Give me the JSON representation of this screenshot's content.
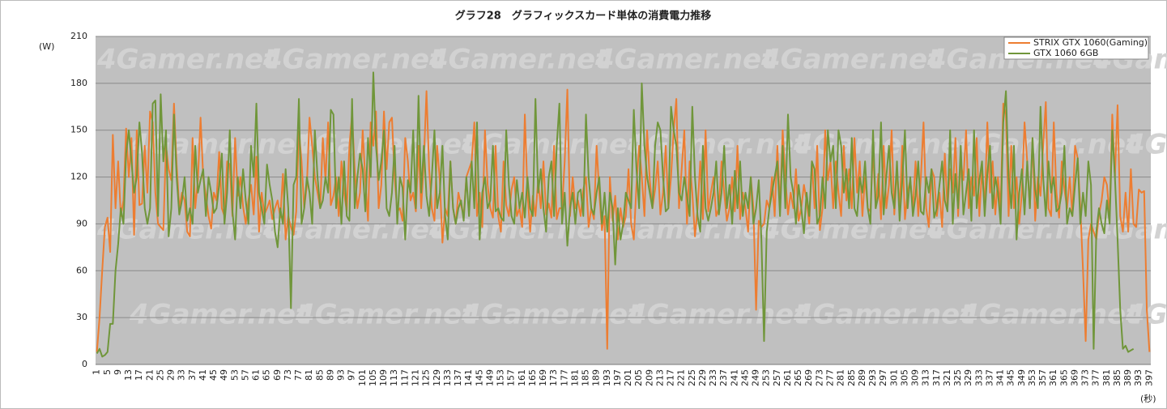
{
  "chart_data": {
    "type": "line",
    "title": "グラフ28　グラフィックスカード単体の消費電力推移",
    "y_axis_label": "(W)",
    "x_axis_label": "(秒)",
    "watermark": "4Gamer.net",
    "ylim": [
      0,
      210
    ],
    "yticks": [
      0,
      30,
      60,
      90,
      120,
      150,
      180,
      210
    ],
    "grid": true,
    "legend": "top-right",
    "categories": [
      "1",
      null,
      null,
      null,
      "5",
      null,
      null,
      null,
      "9",
      null,
      null,
      null,
      "13",
      null,
      null,
      null,
      "17",
      null,
      null,
      null,
      "21",
      null,
      null,
      null,
      "25",
      null,
      null,
      null,
      "29",
      null,
      null,
      null,
      "33",
      null,
      null,
      null,
      "37",
      null,
      null,
      null,
      "41",
      null,
      null,
      null,
      "45",
      null,
      null,
      null,
      "49",
      null,
      null,
      null,
      "53",
      null,
      null,
      null,
      "57",
      null,
      null,
      null,
      "61",
      null,
      null,
      null,
      "65",
      null,
      null,
      null,
      "69",
      null,
      null,
      null,
      "73",
      null,
      null,
      null,
      "77",
      null,
      null,
      null,
      "81",
      null,
      null,
      null,
      "85",
      null,
      null,
      null,
      "89",
      null,
      null,
      null,
      "93",
      null,
      null,
      null,
      "97",
      null,
      null,
      null,
      "101",
      null,
      null,
      null,
      "105",
      null,
      null,
      null,
      "109",
      null,
      null,
      null,
      "113",
      null,
      null,
      null,
      "117",
      null,
      null,
      null,
      "121",
      null,
      null,
      null,
      "125",
      null,
      null,
      null,
      "129",
      null,
      null,
      null,
      "133",
      null,
      null,
      null,
      "137",
      null,
      null,
      null,
      "141",
      null,
      null,
      null,
      "145",
      null,
      null,
      null,
      "149",
      null,
      null,
      null,
      "153",
      null,
      null,
      null,
      "157",
      null,
      null,
      null,
      "161",
      null,
      null,
      null,
      "165",
      null,
      null,
      null,
      "169",
      null,
      null,
      null,
      "173",
      null,
      null,
      null,
      "177",
      null,
      null,
      null,
      "181",
      null,
      null,
      null,
      "185",
      null,
      null,
      null,
      "189",
      null,
      null,
      null,
      "193",
      null,
      null,
      null,
      "197",
      null,
      null,
      null,
      "201",
      null,
      null,
      null,
      "205",
      null,
      null,
      null,
      "209",
      null,
      null,
      null,
      "213",
      null,
      null,
      null,
      "217",
      null,
      null,
      null,
      "221",
      null,
      null,
      null,
      "225",
      null,
      null,
      null,
      "229",
      null,
      null,
      null,
      "233",
      null,
      null,
      null,
      "237",
      null,
      null,
      null,
      "241",
      null,
      null,
      null,
      "245",
      null,
      null,
      null,
      "249",
      null,
      null,
      null,
      "253",
      null,
      null,
      null,
      "257",
      null,
      null,
      null,
      "261",
      null,
      null,
      null,
      "265",
      null,
      null,
      null,
      "269",
      null,
      null,
      null,
      "273",
      null,
      null,
      null,
      "277",
      null,
      null,
      null,
      "281",
      null,
      null,
      null,
      "285",
      null,
      null,
      null,
      "289",
      null,
      null,
      null,
      "293",
      null,
      null,
      null,
      "297",
      null,
      null,
      null,
      "301",
      null,
      null,
      null,
      "305",
      null,
      null,
      null,
      "309",
      null,
      null,
      null,
      "313",
      null,
      null,
      null,
      "317",
      null,
      null,
      null,
      "321",
      null,
      null,
      null,
      "325",
      null,
      null,
      null,
      "329",
      null,
      null,
      null,
      "333",
      null,
      null,
      null,
      "337",
      null,
      null,
      null,
      "341",
      null,
      null,
      null,
      "345",
      null,
      null,
      null,
      "349",
      null,
      null,
      null,
      "353",
      null,
      null,
      null,
      "357",
      null,
      null,
      null,
      "361",
      null,
      null,
      null,
      "365",
      null,
      null,
      null,
      "369",
      null,
      null,
      null,
      "373",
      null,
      null,
      null,
      "377",
      null,
      null,
      null,
      "381",
      null,
      null,
      null,
      "385",
      null,
      null,
      null,
      "389",
      null,
      null,
      null,
      "393",
      null,
      null,
      null,
      "397"
    ],
    "series": [
      {
        "name": "STRIX GTX 1060(Gaming)",
        "color": "#ed7d31",
        "values": [
          8,
          30,
          60,
          88,
          94,
          72,
          147,
          100,
          130,
          95,
          105,
          151,
          120,
          145,
          83,
          150,
          102,
          103,
          140,
          110,
          162,
          155,
          110,
          90,
          88,
          86,
          140,
          125,
          118,
          167,
          128,
          100,
          110,
          105,
          85,
          82,
          145,
          100,
          118,
          158,
          120,
          108,
          95,
          87,
          110,
          105,
          136,
          100,
          95,
          130,
          128,
          95,
          145,
          108,
          120,
          101,
          90,
          105,
          115,
          96,
          133,
          85,
          110,
          96,
          100,
          105,
          93,
          100,
          105,
          94,
          122,
          80,
          95,
          88,
          83,
          98,
          150,
          130,
          100,
          115,
          158,
          140,
          120,
          110,
          100,
          145,
          118,
          155,
          102,
          108,
          120,
          95,
          130,
          110,
          98,
          140,
          160,
          125,
          100,
          110,
          150,
          118,
          92,
          155,
          140,
          162,
          100,
          115,
          162,
          125,
          155,
          158,
          120,
          98,
          100,
          92,
          145,
          130,
          105,
          110,
          98,
          140,
          100,
          130,
          175,
          125,
          100,
          92,
          140,
          118,
          78,
          100,
          95,
          130,
          100,
          90,
          110,
          102,
          95,
          120,
          125,
          130,
          155,
          95,
          110,
          88,
          150,
          115,
          100,
          94,
          140,
          95,
          85,
          130,
          102,
          95,
          112,
          120,
          95,
          100,
          88,
          160,
          110,
          85,
          108,
          95,
          118,
          100,
          130,
          96,
          103,
          94,
          140,
          93,
          100,
          100,
          130,
          176,
          95,
          120,
          100,
          105,
          95,
          112,
          120,
          88,
          100,
          93,
          140,
          110,
          86,
          95,
          10,
          120,
          92,
          108,
          80,
          100,
          88,
          95,
          125,
          90,
          80,
          115,
          140,
          120,
          95,
          150,
          118,
          100,
          112,
          130,
          96,
          110,
          140,
          100,
          120,
          150,
          170,
          100,
          125,
          150,
          90,
          130,
          110,
          82,
          100,
          130,
          93,
          150,
          98,
          110,
          120,
          95,
          100,
          130,
          110,
          92,
          100,
          120,
          98,
          140,
          93,
          110,
          100,
          85,
          120,
          100,
          35,
          92,
          88,
          90,
          105,
          100,
          120,
          95,
          140,
          100,
          150,
          120,
          96,
          110,
          100,
          125,
          92,
          100,
          115,
          105,
          90,
          130,
          100,
          140,
          86,
          100,
          150,
          118,
          130,
          100,
          130,
          110,
          95,
          140,
          105,
          125,
          100,
          145,
          110,
          130,
          95,
          120,
          100,
          98,
          138,
          100,
          122,
          93,
          140,
          100,
          115,
          150,
          96,
          125,
          100,
          140,
          93,
          110,
          118,
          100,
          130,
          95,
          120,
          155,
          100,
          88,
          125,
          120,
          95,
          110,
          88,
          135,
          100,
          125,
          110,
          145,
          95,
          130,
          118,
          150,
          100,
          120,
          108,
          145,
          95,
          125,
          100,
          155,
          110,
          130,
          96,
          120,
          100,
          167,
          160,
          95,
          140,
          100,
          120,
          90,
          110,
          155,
          130,
          100,
          145,
          92,
          120,
          108,
          140,
          168,
          100,
          95,
          155,
          110,
          94,
          130,
          112,
          100,
          120,
          95,
          140,
          132,
          100,
          60,
          15,
          80,
          90,
          85,
          80,
          96,
          105,
          120,
          115,
          95,
          160,
          120,
          166,
          95,
          85,
          110,
          85,
          125,
          90,
          88,
          112,
          110,
          111,
          35,
          8
        ]
      },
      {
        "name": "GTX 1060 6GB",
        "color": "#70963a",
        "values": [
          7,
          10,
          5,
          6,
          8,
          26,
          26,
          60,
          77,
          100,
          90,
          135,
          150,
          130,
          110,
          120,
          155,
          135,
          100,
          90,
          100,
          167,
          169,
          95,
          173,
          130,
          150,
          82,
          100,
          160,
          120,
          96,
          105,
          120,
          92,
          100,
          90,
          140,
          110,
          118,
          125,
          95,
          120,
          110,
          97,
          100,
          115,
          135,
          90,
          110,
          150,
          98,
          80,
          120,
          100,
          125,
          105,
          90,
          140,
          120,
          167,
          110,
          100,
          90,
          128,
          115,
          105,
          85,
          75,
          100,
          90,
          125,
          100,
          36,
          115,
          120,
          170,
          90,
          100,
          120,
          110,
          90,
          150,
          120,
          100,
          105,
          120,
          110,
          163,
          160,
          100,
          120,
          90,
          130,
          95,
          92,
          170,
          100,
          120,
          135,
          125,
          98,
          145,
          120,
          187,
          140,
          118,
          130,
          150,
          100,
          95,
          110,
          140,
          90,
          120,
          113,
          80,
          118,
          110,
          150,
          100,
          172,
          110,
          140,
          108,
          95,
          120,
          150,
          100,
          110,
          140,
          95,
          80,
          130,
          100,
          90,
          100,
          105,
          92,
          120,
          95,
          130,
          100,
          155,
          80,
          110,
          120,
          100,
          105,
          140,
          98,
          100,
          94,
          92,
          150,
          115,
          95,
          90,
          118,
          100,
          110,
          94,
          120,
          100,
          95,
          170,
          110,
          125,
          100,
          85,
          120,
          130,
          95,
          140,
          167,
          90,
          110,
          76,
          100,
          110,
          90,
          110,
          112,
          95,
          160,
          120,
          100,
          96,
          110,
          120,
          90,
          110,
          85,
          110,
          100,
          64,
          100,
          80,
          90,
          110,
          105,
          100,
          163,
          125,
          100,
          180,
          140,
          120,
          110,
          100,
          140,
          155,
          150,
          120,
          98,
          100,
          165,
          150,
          140,
          110,
          105,
          120,
          108,
          95,
          165,
          120,
          95,
          85,
          140,
          100,
          92,
          100,
          110,
          130,
          96,
          110,
          140,
          100,
          115,
          90,
          124,
          100,
          130,
          95,
          110,
          100,
          120,
          90,
          100,
          118,
          80,
          15,
          85,
          100,
          110,
          120,
          130,
          95,
          140,
          100,
          160,
          120,
          110,
          90,
          115,
          100,
          84,
          110,
          95,
          130,
          125,
          90,
          95,
          120,
          100,
          150,
          130,
          140,
          100,
          150,
          140,
          110,
          125,
          100,
          145,
          100,
          95,
          120,
          110,
          130,
          100,
          90,
          150,
          100,
          108,
          155,
          96,
          120,
          140,
          110,
          100,
          130,
          92,
          118,
          150,
          100,
          120,
          95,
          108,
          130,
          98,
          96,
          120,
          110,
          125,
          94,
          100,
          115,
          130,
          105,
          98,
          150,
          90,
          122,
          100,
          140,
          96,
          110,
          125,
          92,
          150,
          100,
          118,
          130,
          95,
          122,
          140,
          100,
          120,
          110,
          90,
          155,
          175,
          120,
          100,
          140,
          80,
          110,
          125,
          96,
          130,
          100,
          145,
          112,
          100,
          165,
          120,
          95,
          130,
          110,
          120,
          98,
          100,
          110,
          140,
          90,
          100,
          95,
          115,
          132,
          90,
          110,
          95,
          130,
          115,
          10,
          85,
          100,
          90,
          84,
          105,
          90,
          150,
          120,
          80,
          35,
          10,
          12,
          8,
          9,
          10,
          null,
          null,
          null,
          null,
          null,
          null
        ]
      }
    ]
  }
}
